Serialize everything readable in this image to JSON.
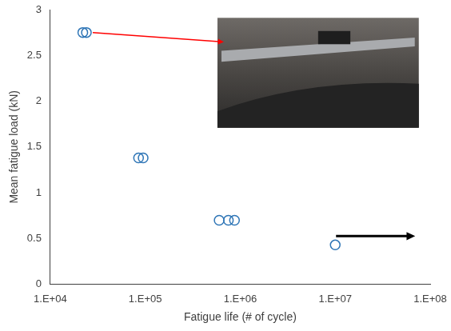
{
  "chart_data": {
    "type": "scatter",
    "x_label": "Fatigue life (# of cycle)",
    "y_label": "Mean fatigue load (kN)",
    "x": [
      22000,
      24000,
      85000,
      95000,
      600000,
      750000,
      870000,
      10000000
    ],
    "values": [
      2.75,
      2.75,
      1.38,
      1.38,
      0.7,
      0.7,
      0.7,
      0.43
    ],
    "color": "#2e75b6",
    "marker": "open_circle",
    "log": "x",
    "grid": false,
    "xlim": [
      10000,
      100000000
    ],
    "xticks": [
      {
        "value": 10000,
        "label": "1.E+04"
      },
      {
        "value": 100000,
        "label": "1.E+05"
      },
      {
        "value": 1000000,
        "label": "1.E+06"
      },
      {
        "value": 10000000,
        "label": "1.E+07"
      },
      {
        "value": 100000000,
        "label": "1.E+08"
      }
    ],
    "ylim": [
      0,
      3
    ],
    "yticks": [
      0,
      0.5,
      1,
      1.5,
      2,
      2.5,
      3
    ]
  }
}
